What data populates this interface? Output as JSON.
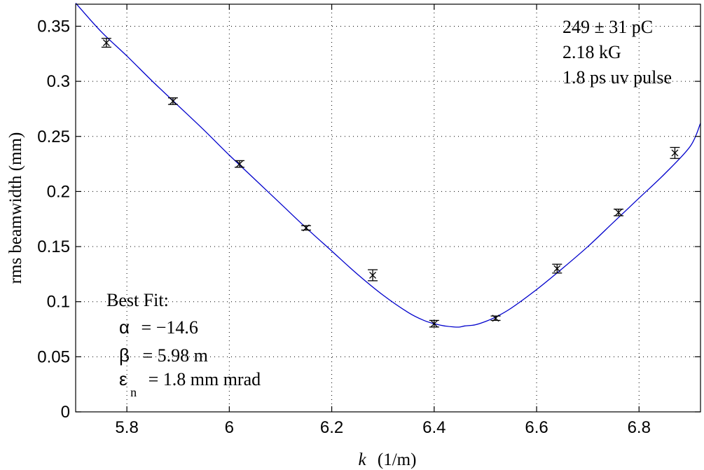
{
  "chart_data": {
    "type": "scatter",
    "xlabel_var": "k",
    "xlabel_unit": "(1/m)",
    "ylabel": "rms beamwidth  (mm)",
    "xlim": [
      5.7,
      6.92
    ],
    "ylim": [
      0,
      0.37
    ],
    "grid": true,
    "x_ticks": [
      5.8,
      6.0,
      6.2,
      6.4,
      6.6,
      6.8
    ],
    "x_tick_labels": [
      "5.8",
      "6",
      "6.2",
      "6.4",
      "6.6",
      "6.8"
    ],
    "y_ticks": [
      0,
      0.05,
      0.1,
      0.15,
      0.2,
      0.25,
      0.3,
      0.35
    ],
    "y_tick_labels": [
      "0",
      "0.05",
      "0.1",
      "0.15",
      "0.2",
      "0.25",
      "0.3",
      "0.35"
    ],
    "series": [
      {
        "type": "scatter-errorbar",
        "marker": "x",
        "color": "#000000",
        "x": [
          5.76,
          5.89,
          6.02,
          6.15,
          6.28,
          6.4,
          6.52,
          6.64,
          6.76,
          6.87
        ],
        "y": [
          0.335,
          0.282,
          0.225,
          0.167,
          0.124,
          0.08,
          0.085,
          0.13,
          0.181,
          0.235
        ],
        "err": [
          0.004,
          0.003,
          0.003,
          0.002,
          0.005,
          0.003,
          0.002,
          0.004,
          0.003,
          0.005
        ]
      },
      {
        "type": "fit-line",
        "color": "#0000cc",
        "x": [
          5.7,
          5.75,
          5.8,
          5.85,
          5.9,
          5.95,
          6.0,
          6.05,
          6.1,
          6.15,
          6.2,
          6.25,
          6.3,
          6.35,
          6.38,
          6.4,
          6.42,
          6.44,
          6.45,
          6.46,
          6.48,
          6.5,
          6.52,
          6.55,
          6.6,
          6.65,
          6.7,
          6.75,
          6.8,
          6.85,
          6.9,
          6.92
        ],
        "y": [
          0.371,
          0.345,
          0.323,
          0.3,
          0.278,
          0.256,
          0.233,
          0.211,
          0.189,
          0.167,
          0.146,
          0.125,
          0.106,
          0.09,
          0.083,
          0.08,
          0.078,
          0.077,
          0.077,
          0.078,
          0.079,
          0.082,
          0.086,
          0.094,
          0.111,
          0.13,
          0.15,
          0.172,
          0.194,
          0.216,
          0.241,
          0.262
        ]
      }
    ],
    "annotations_top_right": [
      "249 ± 31 pC",
      "2.18 kG",
      "1.8 ps uv pulse"
    ],
    "fit": {
      "title": "Best Fit:",
      "alpha_symbol": "α",
      "alpha_value": "= −14.6",
      "beta_symbol": "β",
      "beta_value": "=   5.98 m",
      "eps_symbol": "ε",
      "eps_subscript": "n",
      "eps_value": "=   1.8 mm mrad"
    }
  }
}
